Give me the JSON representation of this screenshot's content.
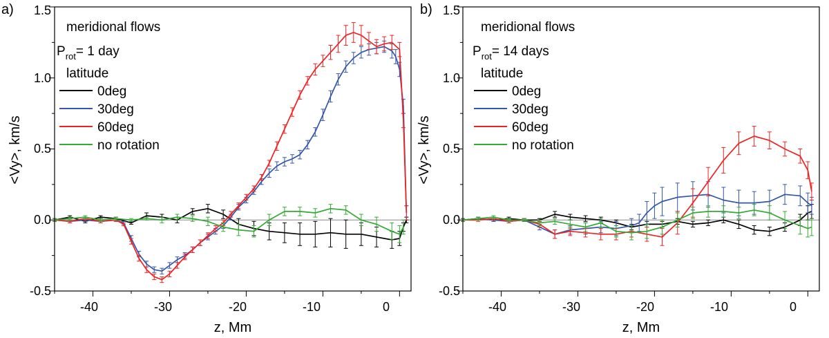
{
  "chart_data": [
    {
      "panel_label": "a)",
      "type": "line",
      "annotation_title": "meridional flows",
      "period_label": {
        "main": "P",
        "sub": "rot",
        "value": "= 1 day"
      },
      "legend_title": "latitude",
      "xlabel": "z, Mm",
      "ylabel": "<Vy>, km/s",
      "xlim": [
        -45,
        1.5
      ],
      "ylim": [
        -0.5,
        1.5
      ],
      "xticks": [
        -40,
        -30,
        -20,
        -10,
        0
      ],
      "xtick_labels": [
        "-40",
        "-30",
        "-20",
        "-10",
        "0"
      ],
      "yticks": [
        -0.5,
        0.0,
        0.5,
        1.0,
        1.5
      ],
      "ytick_labels": [
        "-0.5",
        "0.0",
        "0.5",
        "1.0",
        "1.5"
      ],
      "zero_line": true,
      "series": [
        {
          "name": "0deg",
          "color": "#000000",
          "x": [
            -45,
            -43,
            -41,
            -39,
            -37,
            -35,
            -33,
            -31,
            -29,
            -27,
            -25,
            -23,
            -21,
            -19,
            -17,
            -15,
            -13,
            -11,
            -9,
            -7,
            -5,
            -3,
            -1,
            0,
            0.5,
            0.9
          ],
          "y": [
            0,
            0.02,
            -0.01,
            0.02,
            0.01,
            -0.02,
            0.03,
            0.02,
            0.0,
            0.06,
            0.08,
            0.04,
            -0.03,
            -0.06,
            -0.08,
            -0.09,
            -0.1,
            -0.1,
            -0.09,
            -0.1,
            -0.1,
            -0.12,
            -0.14,
            -0.13,
            -0.05,
            0.0
          ],
          "errors": [
            0.01,
            0.01,
            0.01,
            0.01,
            0.01,
            0.01,
            0.02,
            0.02,
            0.02,
            0.02,
            0.03,
            0.03,
            0.04,
            0.05,
            0.06,
            0.07,
            0.08,
            0.09,
            0.1,
            0.1,
            0.08,
            0.07,
            0.06,
            0.05,
            0.03,
            0.02
          ]
        },
        {
          "name": "30deg",
          "color": "#3355aa",
          "x": [
            -45,
            -43,
            -41,
            -39,
            -37,
            -36,
            -35,
            -34,
            -33,
            -32,
            -31,
            -30,
            -29,
            -28,
            -27,
            -26,
            -25,
            -24,
            -23,
            -22,
            -21,
            -20,
            -19,
            -18,
            -17,
            -16,
            -15,
            -14,
            -13,
            -12,
            -11,
            -10,
            -9,
            -8,
            -7,
            -6,
            -5,
            -4,
            -3,
            -2,
            -1,
            -0.5,
            0,
            0.5,
            0.9
          ],
          "y": [
            0,
            -0.01,
            0.0,
            -0.01,
            0.0,
            -0.02,
            -0.13,
            -0.24,
            -0.31,
            -0.35,
            -0.36,
            -0.32,
            -0.28,
            -0.25,
            -0.21,
            -0.16,
            -0.12,
            -0.08,
            -0.04,
            0.02,
            0.09,
            0.14,
            0.2,
            0.27,
            0.33,
            0.38,
            0.41,
            0.43,
            0.46,
            0.53,
            0.62,
            0.74,
            0.87,
            0.99,
            1.08,
            1.14,
            1.18,
            1.2,
            1.21,
            1.22,
            1.19,
            1.15,
            1.06,
            0.8,
            0.05
          ],
          "errors": [
            0.01,
            0.01,
            0.01,
            0.01,
            0.01,
            0.01,
            0.02,
            0.02,
            0.02,
            0.02,
            0.02,
            0.02,
            0.02,
            0.02,
            0.02,
            0.02,
            0.02,
            0.02,
            0.02,
            0.02,
            0.02,
            0.02,
            0.02,
            0.02,
            0.03,
            0.03,
            0.03,
            0.03,
            0.03,
            0.03,
            0.03,
            0.04,
            0.04,
            0.04,
            0.04,
            0.04,
            0.04,
            0.04,
            0.04,
            0.04,
            0.05,
            0.05,
            0.05,
            0.05,
            0.05
          ]
        },
        {
          "name": "60deg",
          "color": "#ee2222",
          "x": [
            -45,
            -43,
            -41,
            -39,
            -37,
            -36,
            -35,
            -34,
            -33,
            -32,
            -31,
            -30,
            -29,
            -28,
            -27,
            -26,
            -25,
            -24,
            -23,
            -22,
            -21,
            -20,
            -19,
            -18,
            -17,
            -16,
            -15,
            -14,
            -13,
            -12,
            -11,
            -10,
            -9,
            -8,
            -7,
            -6,
            -5,
            -4,
            -3,
            -2,
            -1,
            0,
            0.5,
            0.9
          ],
          "y": [
            0,
            -0.01,
            0.01,
            -0.01,
            0.0,
            -0.03,
            -0.15,
            -0.27,
            -0.35,
            -0.4,
            -0.42,
            -0.38,
            -0.32,
            -0.26,
            -0.21,
            -0.16,
            -0.11,
            -0.06,
            -0.02,
            0.04,
            0.1,
            0.16,
            0.22,
            0.3,
            0.4,
            0.52,
            0.64,
            0.76,
            0.88,
            0.98,
            1.06,
            1.12,
            1.18,
            1.24,
            1.3,
            1.32,
            1.3,
            1.26,
            1.22,
            1.24,
            1.25,
            1.2,
            0.7,
            0.05
          ],
          "errors": [
            0.01,
            0.01,
            0.01,
            0.01,
            0.01,
            0.01,
            0.02,
            0.02,
            0.02,
            0.02,
            0.02,
            0.02,
            0.02,
            0.02,
            0.02,
            0.02,
            0.02,
            0.02,
            0.02,
            0.02,
            0.02,
            0.02,
            0.02,
            0.02,
            0.02,
            0.03,
            0.03,
            0.03,
            0.03,
            0.03,
            0.04,
            0.04,
            0.05,
            0.06,
            0.07,
            0.07,
            0.07,
            0.06,
            0.05,
            0.05,
            0.05,
            0.05,
            0.05,
            0.05
          ]
        },
        {
          "name": "no rotation",
          "color": "#33aa33",
          "x": [
            -45,
            -43,
            -41,
            -39,
            -37,
            -35,
            -33,
            -31,
            -29,
            -27,
            -25,
            -23,
            -21,
            -19,
            -17,
            -15,
            -13,
            -11,
            -9,
            -7,
            -5,
            -3,
            -1,
            0,
            0.5
          ],
          "y": [
            0,
            0.01,
            0.02,
            0.0,
            0.01,
            0.0,
            0.01,
            0.0,
            0.02,
            0.01,
            -0.01,
            -0.05,
            -0.07,
            -0.08,
            0.0,
            0.06,
            0.06,
            0.05,
            0.08,
            0.07,
            0.0,
            -0.03,
            -0.08,
            -0.1,
            -0.05
          ],
          "errors": [
            0.01,
            0.01,
            0.01,
            0.01,
            0.01,
            0.01,
            0.01,
            0.02,
            0.02,
            0.02,
            0.03,
            0.03,
            0.04,
            0.04,
            0.04,
            0.03,
            0.03,
            0.03,
            0.03,
            0.03,
            0.04,
            0.05,
            0.06,
            0.06,
            0.05
          ]
        }
      ]
    },
    {
      "panel_label": "b)",
      "type": "line",
      "annotation_title": "meridional flows",
      "period_label": {
        "main": "P",
        "sub": "rot",
        "value": "= 14 days"
      },
      "legend_title": "latitude",
      "xlabel": "z, Mm",
      "ylabel": "<Vy>, km/s",
      "xlim": [
        -45,
        1.5
      ],
      "ylim": [
        -0.5,
        1.5
      ],
      "xticks": [
        -40,
        -30,
        -20,
        -10,
        0
      ],
      "xtick_labels": [
        "-40",
        "-30",
        "-20",
        "-10",
        "0"
      ],
      "yticks": [
        -0.5,
        0.0,
        0.5,
        1.0,
        1.5
      ],
      "ytick_labels": [
        "-0.5",
        "0.0",
        "0.5",
        "1.0",
        "1.5"
      ],
      "zero_line": true,
      "series": [
        {
          "name": "0deg",
          "color": "#000000",
          "x": [
            -45,
            -43,
            -41,
            -39,
            -37,
            -35,
            -33,
            -31,
            -29,
            -27,
            -25,
            -23,
            -21,
            -19,
            -17,
            -15,
            -13,
            -11,
            -9,
            -7,
            -5,
            -3,
            -1,
            0,
            0.5
          ],
          "y": [
            0,
            0.01,
            0.0,
            0.01,
            0.0,
            0.0,
            0.04,
            0.02,
            0.01,
            0.0,
            -0.02,
            -0.05,
            -0.03,
            -0.03,
            -0.01,
            -0.03,
            -0.02,
            0.0,
            -0.03,
            -0.07,
            -0.08,
            -0.05,
            0.0,
            0.05,
            0.06
          ],
          "errors": [
            0.01,
            0.01,
            0.01,
            0.01,
            0.01,
            0.01,
            0.02,
            0.02,
            0.02,
            0.02,
            0.02,
            0.02,
            0.02,
            0.02,
            0.02,
            0.02,
            0.02,
            0.02,
            0.03,
            0.03,
            0.03,
            0.03,
            0.04,
            0.05,
            0.05
          ]
        },
        {
          "name": "30deg",
          "color": "#3355aa",
          "x": [
            -45,
            -43,
            -41,
            -39,
            -37,
            -35,
            -33,
            -31,
            -29,
            -27,
            -25,
            -23,
            -22,
            -21,
            -20,
            -19,
            -17,
            -15,
            -13,
            -11,
            -9,
            -7,
            -5,
            -3,
            -1,
            0,
            0.5
          ],
          "y": [
            0,
            0.01,
            0.0,
            -0.01,
            0.0,
            -0.05,
            -0.1,
            -0.07,
            -0.06,
            -0.05,
            -0.06,
            -0.04,
            -0.02,
            0.05,
            0.1,
            0.13,
            0.16,
            0.17,
            0.18,
            0.14,
            0.12,
            0.12,
            0.13,
            0.18,
            0.17,
            0.12,
            0.1
          ],
          "errors": [
            0.01,
            0.01,
            0.01,
            0.01,
            0.01,
            0.02,
            0.03,
            0.03,
            0.04,
            0.04,
            0.05,
            0.05,
            0.06,
            0.08,
            0.09,
            0.1,
            0.1,
            0.1,
            0.09,
            0.09,
            0.09,
            0.08,
            0.08,
            0.07,
            0.07,
            0.07,
            0.06
          ]
        },
        {
          "name": "60deg",
          "color": "#ee2222",
          "x": [
            -45,
            -43,
            -41,
            -39,
            -37,
            -35,
            -33,
            -31,
            -29,
            -27,
            -25,
            -23,
            -21,
            -19,
            -17,
            -15,
            -13,
            -11,
            -9,
            -7,
            -5,
            -3,
            -1,
            0,
            0.5
          ],
          "y": [
            0,
            0.0,
            0.01,
            -0.01,
            0.0,
            -0.03,
            -0.1,
            -0.08,
            -0.09,
            -0.1,
            -0.1,
            -0.08,
            -0.1,
            -0.12,
            -0.02,
            0.12,
            0.27,
            0.42,
            0.54,
            0.59,
            0.56,
            0.5,
            0.45,
            0.35,
            0.2
          ],
          "errors": [
            0.01,
            0.01,
            0.01,
            0.01,
            0.01,
            0.02,
            0.03,
            0.03,
            0.03,
            0.04,
            0.04,
            0.04,
            0.05,
            0.06,
            0.08,
            0.1,
            0.1,
            0.09,
            0.08,
            0.07,
            0.06,
            0.05,
            0.05,
            0.06,
            0.06
          ]
        },
        {
          "name": "no rotation",
          "color": "#33aa33",
          "x": [
            -45,
            -43,
            -41,
            -39,
            -37,
            -35,
            -33,
            -31,
            -29,
            -27,
            -25,
            -23,
            -21,
            -19,
            -17,
            -15,
            -13,
            -11,
            -9,
            -7,
            -5,
            -3,
            -1,
            0,
            0.5
          ],
          "y": [
            0,
            0.01,
            0.02,
            0.0,
            0.0,
            -0.02,
            -0.01,
            -0.03,
            -0.05,
            -0.02,
            -0.08,
            -0.09,
            -0.08,
            -0.05,
            0.0,
            0.05,
            0.06,
            0.06,
            0.05,
            0.07,
            0.05,
            0.0,
            -0.04,
            -0.06,
            -0.05
          ],
          "errors": [
            0.01,
            0.01,
            0.01,
            0.01,
            0.01,
            0.02,
            0.02,
            0.03,
            0.03,
            0.03,
            0.04,
            0.05,
            0.05,
            0.05,
            0.05,
            0.04,
            0.04,
            0.04,
            0.04,
            0.04,
            0.05,
            0.06,
            0.06,
            0.06,
            0.06
          ]
        }
      ]
    }
  ]
}
